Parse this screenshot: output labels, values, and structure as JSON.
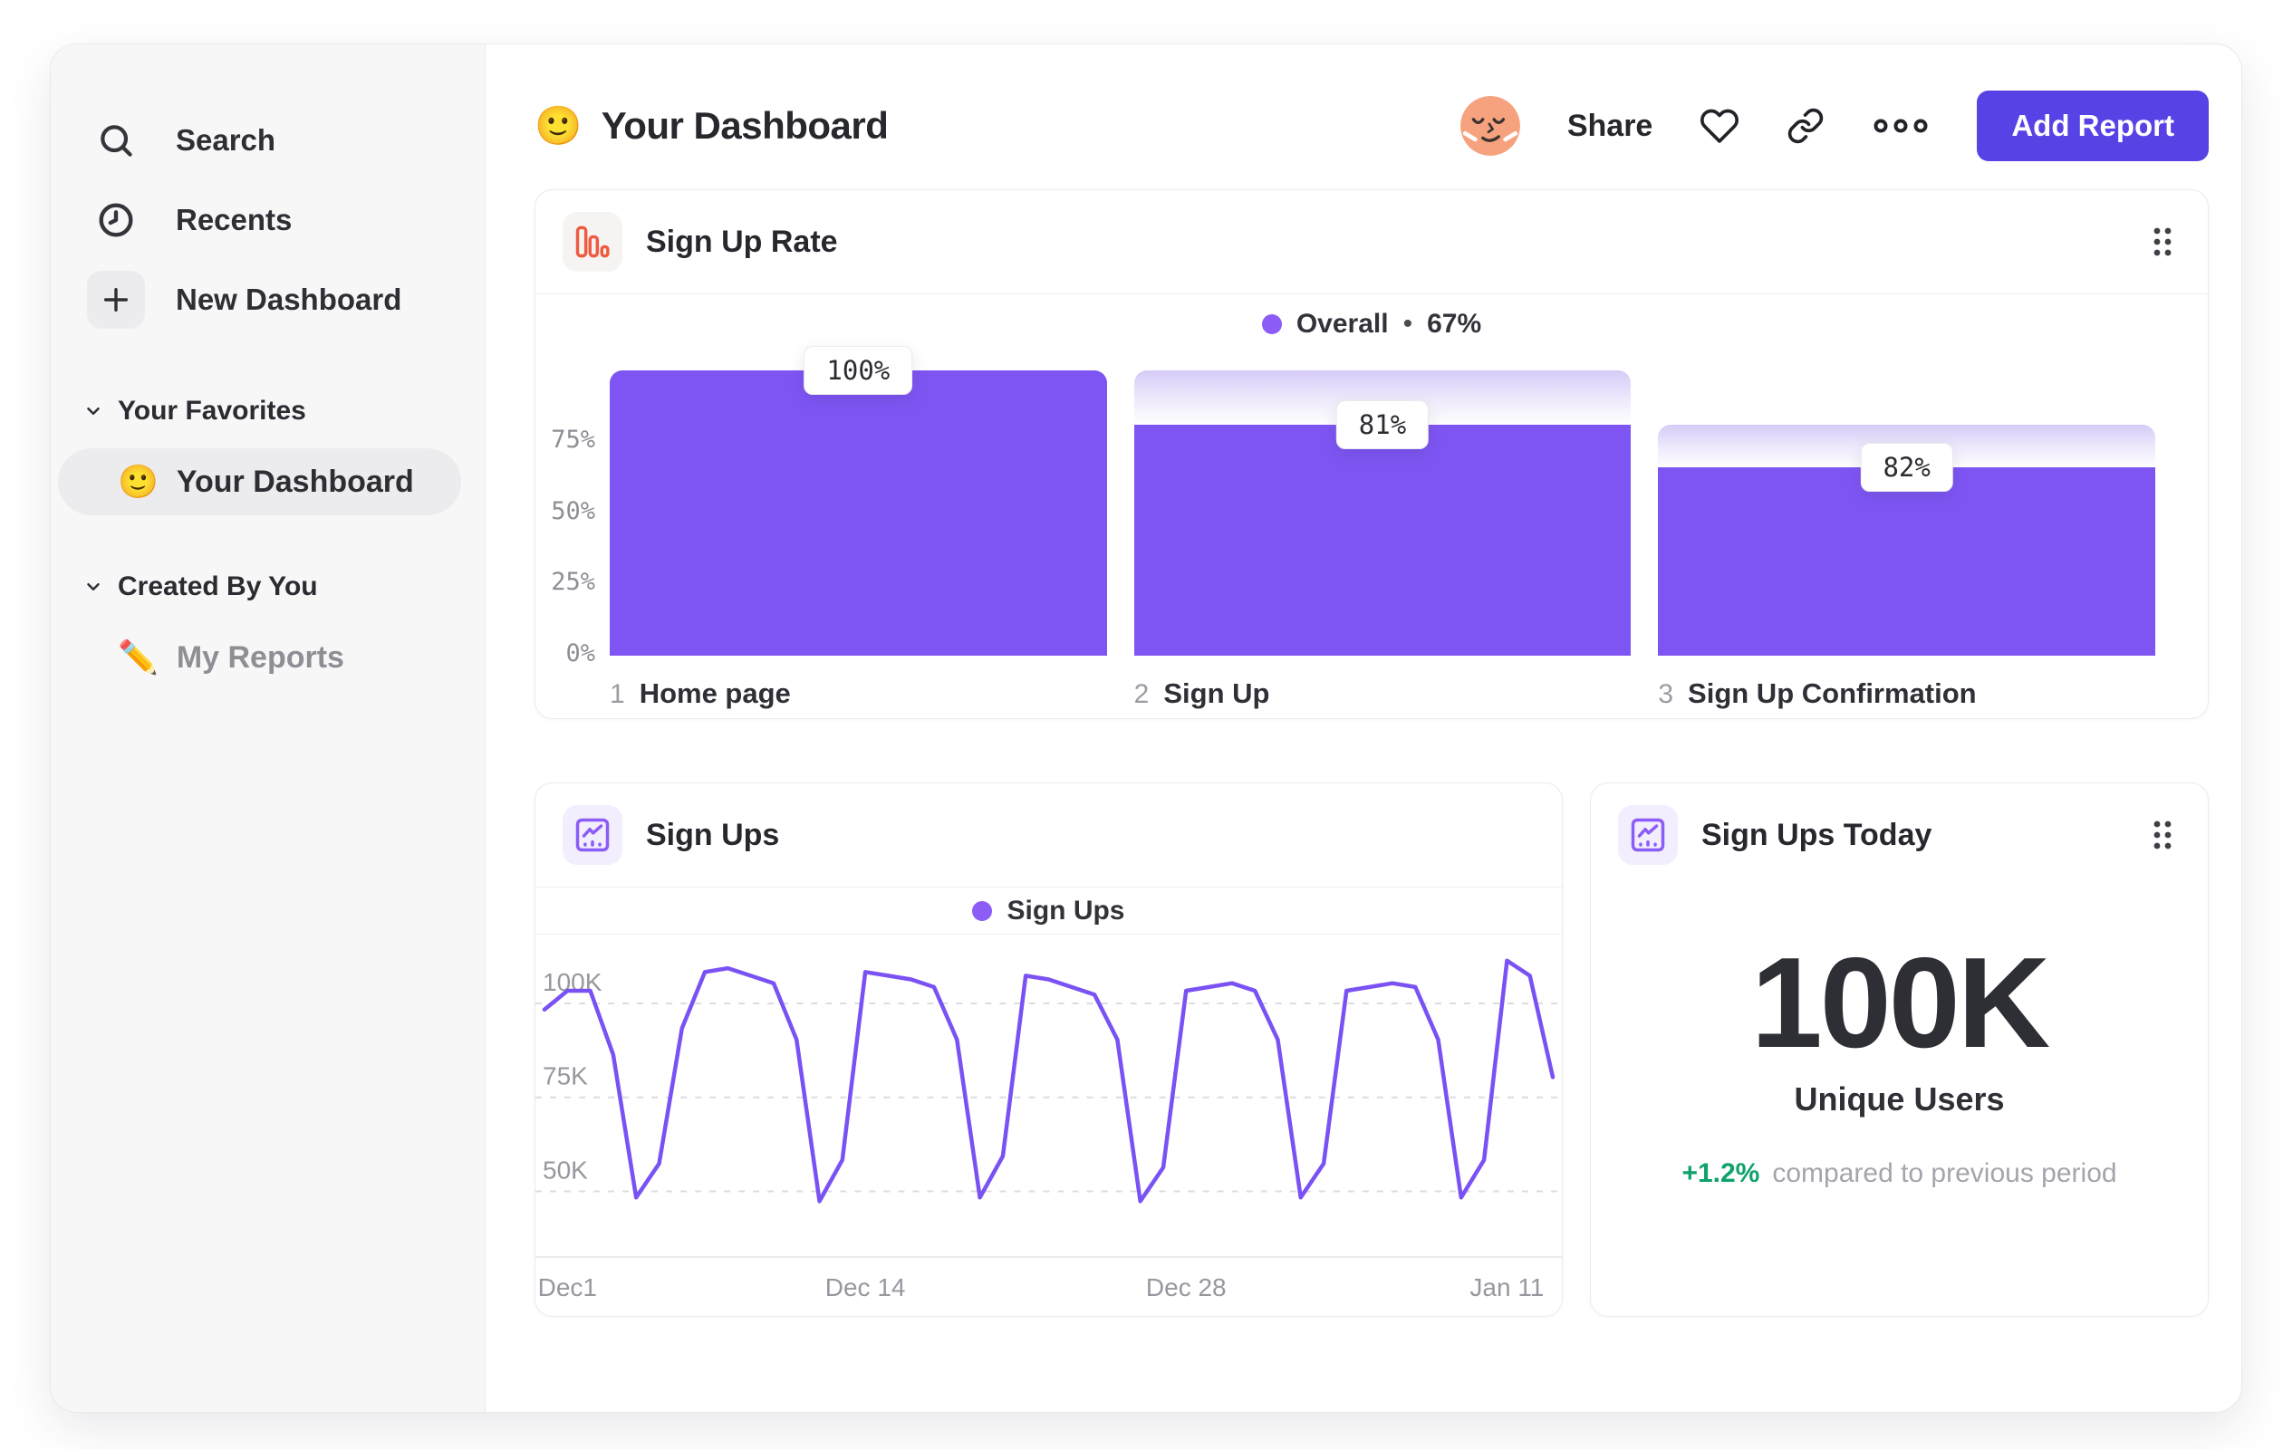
{
  "sidebar": {
    "nav": [
      {
        "id": "search",
        "label": "Search"
      },
      {
        "id": "recents",
        "label": "Recents"
      },
      {
        "id": "new-dashboard",
        "label": "New Dashboard"
      }
    ],
    "sections": [
      {
        "title": "Your Favorites",
        "items": [
          {
            "emoji": "🙂",
            "label": "Your Dashboard",
            "selected": true
          }
        ]
      },
      {
        "title": "Created By You",
        "items": [
          {
            "emoji": "✏️",
            "label": "My Reports",
            "selected": false
          }
        ]
      }
    ]
  },
  "header": {
    "emoji": "🙂",
    "title": "Your Dashboard",
    "share_label": "Share",
    "add_report_label": "Add Report"
  },
  "funnel_card": {
    "title": "Sign Up Rate",
    "legend_label": "Overall",
    "legend_sep": "•",
    "legend_value": "67%"
  },
  "line_card": {
    "title": "Sign Ups",
    "legend_label": "Sign Ups"
  },
  "stat_card": {
    "title": "Sign Ups Today",
    "value": "100K",
    "label": "Unique Users",
    "delta": "+1.2%",
    "delta_caption": "compared to previous period"
  },
  "colors": {
    "accent_button": "#5742e6",
    "funnel_bar": "#7e55f3",
    "legend_dot": "#8b5cf6",
    "line_stroke": "#7a52f4",
    "funnel_icon_orange": "#ef5b41",
    "line_icon_purple": "#8b5cf6",
    "positive_green": "#0ea36a",
    "avatar_bg": "#f7a27e"
  },
  "chart_data": [
    {
      "type": "bar",
      "subtype": "funnel",
      "title": "Sign Up Rate",
      "legend": "Overall • 67%",
      "overall_conversion": "67%",
      "categories": [
        "Home page",
        "Sign Up",
        "Sign Up Confirmation"
      ],
      "steps": [
        {
          "num": "1",
          "name": "Home page",
          "conversion_from_previous": 100,
          "cumulative": 100,
          "previous_level": 100
        },
        {
          "num": "2",
          "name": "Sign Up",
          "conversion_from_previous": 81,
          "cumulative": 81,
          "previous_level": 100
        },
        {
          "num": "3",
          "name": "Sign Up Confirmation",
          "conversion_from_previous": 82,
          "cumulative": 66,
          "previous_level": 81
        }
      ],
      "value_labels": [
        "100%",
        "81%",
        "82%"
      ],
      "yticks": [
        {
          "label": "75%",
          "value": 75
        },
        {
          "label": "50%",
          "value": 50
        },
        {
          "label": "25%",
          "value": 25
        },
        {
          "label": "0%",
          "value": 0
        }
      ],
      "ylim": [
        0,
        100
      ],
      "bar_color": "#7e55f3"
    },
    {
      "type": "line",
      "title": "Sign Ups",
      "legend": "Sign Ups",
      "unit": "thousands of sign ups per day",
      "values_k": [
        95,
        100,
        100,
        83,
        45,
        54,
        90,
        105,
        106,
        104,
        102,
        87,
        44,
        55,
        105,
        104,
        103,
        101,
        87,
        45,
        56,
        104,
        103,
        101,
        99,
        87,
        44,
        53,
        100,
        101,
        102,
        100,
        87,
        45,
        54,
        100,
        101,
        102,
        101,
        87,
        45,
        55,
        108,
        104,
        77
      ],
      "xticks": [
        {
          "label": "Dec1",
          "index": 1
        },
        {
          "label": "Dec 14",
          "index": 14
        },
        {
          "label": "Dec 28",
          "index": 28
        },
        {
          "label": "Jan 11",
          "index": 42
        }
      ],
      "yticks": [
        {
          "label": "100K",
          "value": 100
        },
        {
          "label": "75K",
          "value": 75
        },
        {
          "label": "50K",
          "value": 50
        }
      ],
      "ylim_k": [
        40,
        110
      ],
      "grid": "dashed horizontal",
      "legend_position": "top center",
      "line_color": "#7a52f4"
    }
  ]
}
